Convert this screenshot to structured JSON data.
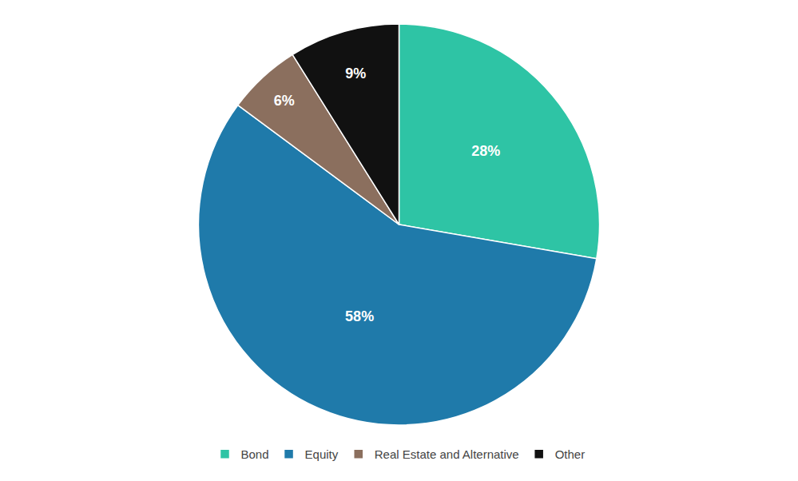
{
  "chart_data": {
    "type": "pie",
    "categories": [
      "Bond",
      "Equity",
      "Real Estate and Alternative",
      "Other"
    ],
    "values": [
      28,
      58,
      6,
      9
    ],
    "value_labels": [
      "28%",
      "58%",
      "6%",
      "9%"
    ],
    "colors": [
      "#2ec4a5",
      "#1f7aaa",
      "#8b6f5e",
      "#111111"
    ],
    "data_labels": true,
    "legend": "bottom"
  }
}
